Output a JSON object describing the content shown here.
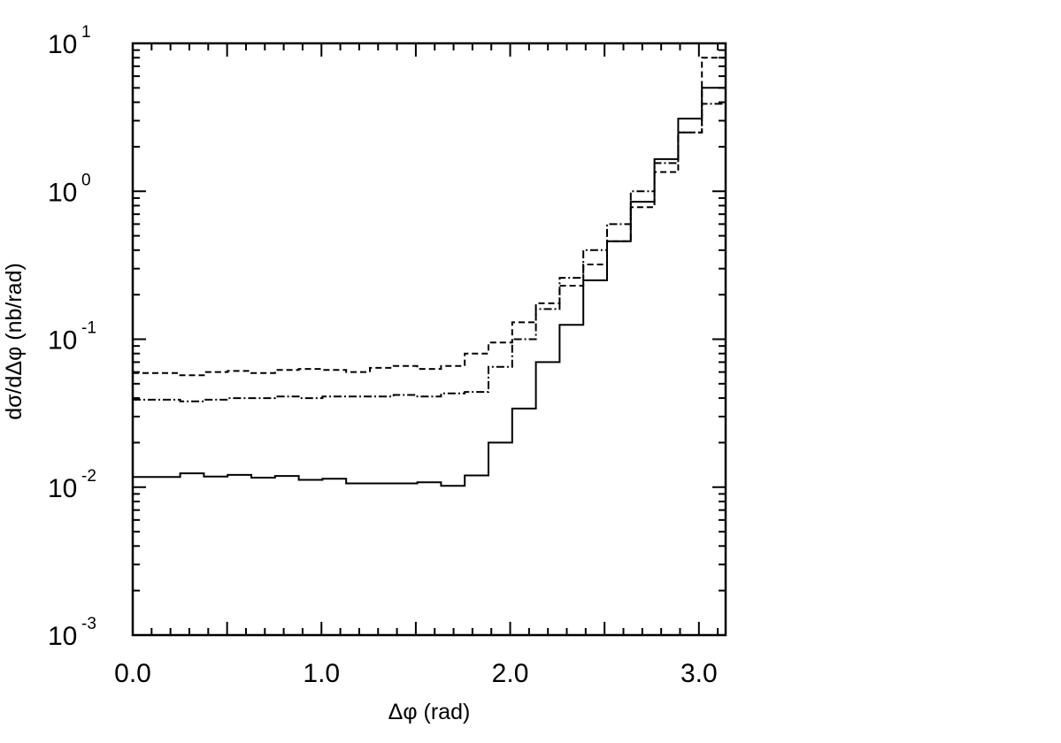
{
  "chart_data": {
    "type": "line",
    "title": "",
    "xlabel": "Δφ  (rad)",
    "ylabel": "dσ/dΔφ  (nb/rad)",
    "xlim": [
      0.0,
      3.1416
    ],
    "ylim": [
      0.001,
      10
    ],
    "yscale": "log",
    "grid": false,
    "legend": "none",
    "x_ticks": [
      {
        "value": 0.0,
        "label": "0.0"
      },
      {
        "value": 1.0,
        "label": "1.0"
      },
      {
        "value": 2.0,
        "label": "2.0"
      },
      {
        "value": 3.0,
        "label": "3.0"
      }
    ],
    "y_ticks": [
      {
        "value": 10,
        "base": "10",
        "exp": "1"
      },
      {
        "value": 1,
        "base": "10",
        "exp": "0"
      },
      {
        "value": 0.1,
        "base": "10",
        "exp": "-1"
      },
      {
        "value": 0.01,
        "base": "10",
        "exp": "-2"
      },
      {
        "value": 0.001,
        "base": "10",
        "exp": "-3"
      }
    ],
    "bin_edges": [
      0.0,
      0.1257,
      0.2513,
      0.377,
      0.5027,
      0.6283,
      0.754,
      0.8796,
      1.0053,
      1.131,
      1.2566,
      1.3823,
      1.508,
      1.6336,
      1.7593,
      1.885,
      2.0106,
      2.1363,
      2.2619,
      2.3876,
      2.5133,
      2.6389,
      2.7646,
      2.8903,
      3.0159,
      3.1416
    ],
    "series": [
      {
        "style": "solid",
        "values": [
          0.0117,
          0.0117,
          0.0124,
          0.0118,
          0.0121,
          0.0116,
          0.0119,
          0.0112,
          0.0114,
          0.0106,
          0.0106,
          0.0106,
          0.0108,
          0.0102,
          0.012,
          0.02,
          0.034,
          0.07,
          0.125,
          0.25,
          0.46,
          0.85,
          1.65,
          3.1,
          5.0
        ]
      },
      {
        "style": "dashed",
        "values": [
          0.059,
          0.059,
          0.057,
          0.06,
          0.061,
          0.059,
          0.062,
          0.063,
          0.062,
          0.06,
          0.064,
          0.066,
          0.063,
          0.066,
          0.08,
          0.095,
          0.13,
          0.175,
          0.23,
          0.32,
          0.46,
          0.78,
          1.35,
          2.5,
          8.0
        ]
      },
      {
        "style": "dashdot",
        "values": [
          0.039,
          0.039,
          0.038,
          0.039,
          0.04,
          0.04,
          0.041,
          0.04,
          0.041,
          0.041,
          0.041,
          0.042,
          0.041,
          0.043,
          0.044,
          0.065,
          0.1,
          0.16,
          0.26,
          0.4,
          0.6,
          1.0,
          1.55,
          2.5,
          3.9
        ]
      }
    ]
  }
}
